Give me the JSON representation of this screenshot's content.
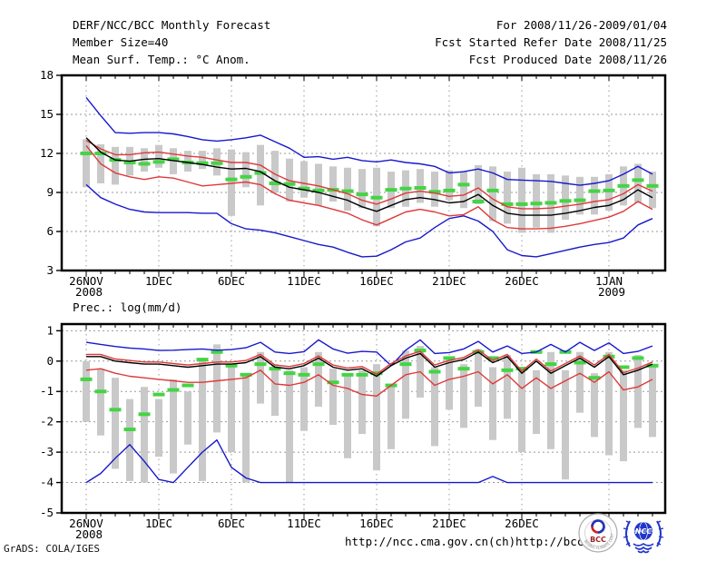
{
  "header": {
    "left1": "DERF/NCC/BCC Monthly Forecast",
    "left2": "Member Size=40",
    "left3": "Mean Surf. Temp.: °C Anom.",
    "right1": "For 2008/11/26-2009/01/04",
    "right2": "Fcst Started Refer Date 2008/11/25",
    "right3": "Fcst Produced Date 2008/11/26"
  },
  "panels": {
    "precip_title": "Prec.: log(mm/d)"
  },
  "footer": {
    "ncc_url": "http://ncc.cma.gov.cn(ch)",
    "bcc_url": "http://bcc.c",
    "credit": "GrADS: COLA/IGES",
    "bcc_logo_text": "BCC",
    "bcc_ring_text": "BEIJING CLIMATE CENTER",
    "ncc_logo_text": "NCC"
  },
  "colors": {
    "envelope": "#1818cc",
    "quartile": "#e03838",
    "mean": "#000000",
    "obs": "#44d444",
    "spread_bar": "#c9c9c9",
    "grid": "#999999",
    "frame": "#000000"
  },
  "chart_data": [
    {
      "type": "line",
      "title": "Mean Surf. Temp.: °C Anom.",
      "xlabel": "",
      "ylabel": "",
      "ylim": [
        3,
        18
      ],
      "grid": true,
      "n_days": 40,
      "x_start_date": "26NOV2008",
      "x_end_date": "4JAN2009",
      "y_ticks": [
        {
          "v": 18,
          "label": "18"
        },
        {
          "v": 15,
          "label": "15"
        },
        {
          "v": 12,
          "label": "12"
        },
        {
          "v": 9,
          "label": "9"
        },
        {
          "v": 6,
          "label": "6"
        },
        {
          "v": 3,
          "label": "3"
        }
      ],
      "grid_y": [
        15,
        12,
        9,
        6
      ],
      "x_grid_days": [
        0,
        5,
        10,
        15,
        20,
        25,
        30,
        36
      ],
      "x_ticks": [
        {
          "day": 0,
          "label": "26NOV",
          "sublabel": "2008"
        },
        {
          "day": 5,
          "label": "1DEC"
        },
        {
          "day": 10,
          "label": "6DEC"
        },
        {
          "day": 15,
          "label": "11DEC"
        },
        {
          "day": 20,
          "label": "16DEC"
        },
        {
          "day": 25,
          "label": "21DEC"
        },
        {
          "day": 30,
          "label": "26DEC"
        },
        {
          "day": 36,
          "label": "1JAN",
          "sublabel": "2009"
        }
      ],
      "series": [
        {
          "name": "ensemble-max",
          "role": "envelope",
          "values": [
            16.3,
            14.9,
            13.6,
            13.55,
            13.6,
            13.6,
            13.5,
            13.3,
            13.05,
            12.95,
            13.05,
            13.2,
            13.4,
            12.9,
            12.4,
            11.7,
            11.75,
            11.55,
            11.7,
            11.45,
            11.35,
            11.5,
            11.3,
            11.2,
            11.0,
            10.5,
            10.6,
            10.8,
            10.5,
            10.0,
            9.95,
            9.9,
            9.85,
            9.7,
            9.55,
            9.7,
            9.9,
            10.4,
            11.0,
            10.4
          ]
        },
        {
          "name": "ensemble-min",
          "role": "envelope",
          "values": [
            9.6,
            8.6,
            8.1,
            7.7,
            7.5,
            7.45,
            7.45,
            7.45,
            7.4,
            7.4,
            6.6,
            6.2,
            6.1,
            5.9,
            5.6,
            5.3,
            5.0,
            4.8,
            4.4,
            4.05,
            4.1,
            4.6,
            5.2,
            5.5,
            6.3,
            7.0,
            7.2,
            6.8,
            6.0,
            4.6,
            4.15,
            4.05,
            4.3,
            4.55,
            4.8,
            5.0,
            5.15,
            5.5,
            6.5,
            7.0
          ]
        },
        {
          "name": "upper-quartile",
          "role": "quartile",
          "values": [
            13.0,
            12.35,
            11.9,
            11.9,
            12.05,
            12.1,
            11.95,
            11.8,
            11.7,
            11.5,
            11.3,
            11.3,
            11.1,
            10.4,
            9.9,
            9.7,
            9.5,
            9.2,
            8.9,
            8.4,
            8.1,
            8.5,
            8.95,
            9.1,
            8.95,
            8.7,
            8.8,
            9.35,
            8.5,
            7.9,
            7.75,
            7.75,
            7.8,
            7.95,
            8.1,
            8.3,
            8.45,
            8.9,
            9.6,
            9.1
          ]
        },
        {
          "name": "lower-quartile",
          "role": "quartile",
          "values": [
            12.6,
            11.2,
            10.5,
            10.2,
            10.0,
            10.2,
            10.1,
            9.8,
            9.5,
            9.6,
            9.7,
            9.8,
            9.6,
            8.9,
            8.4,
            8.2,
            8.0,
            7.7,
            7.4,
            6.9,
            6.5,
            7.0,
            7.5,
            7.7,
            7.5,
            7.2,
            7.3,
            7.9,
            6.9,
            6.3,
            6.2,
            6.2,
            6.25,
            6.4,
            6.6,
            6.85,
            7.1,
            7.55,
            8.3,
            7.7
          ]
        },
        {
          "name": "ensemble-mean",
          "role": "mean",
          "values": [
            13.2,
            12.1,
            11.5,
            11.4,
            11.55,
            11.6,
            11.45,
            11.3,
            11.15,
            10.95,
            10.8,
            10.85,
            10.6,
            9.9,
            9.4,
            9.2,
            9.0,
            8.7,
            8.4,
            7.9,
            7.55,
            8.0,
            8.45,
            8.6,
            8.45,
            8.2,
            8.3,
            8.85,
            8.0,
            7.4,
            7.25,
            7.25,
            7.25,
            7.4,
            7.6,
            7.85,
            8.0,
            8.45,
            9.2,
            8.6
          ]
        }
      ],
      "obs_dashes": [
        12.0,
        12.0,
        11.5,
        11.3,
        11.2,
        11.35,
        11.55,
        11.3,
        11.25,
        11.25,
        10.0,
        10.2,
        10.5,
        9.7,
        9.65,
        9.3,
        9.15,
        9.2,
        9.1,
        8.85,
        8.6,
        9.2,
        9.3,
        9.35,
        9.05,
        9.15,
        9.6,
        8.3,
        9.15,
        8.1,
        8.1,
        8.15,
        8.2,
        8.35,
        8.4,
        9.1,
        9.15,
        9.5,
        9.95,
        9.5
      ],
      "spread_bars": [
        [
          9.4,
          13.1
        ],
        [
          9.7,
          12.7
        ],
        [
          9.6,
          12.5
        ],
        [
          10.3,
          12.5
        ],
        [
          10.6,
          12.4
        ],
        [
          10.9,
          12.65
        ],
        [
          10.4,
          12.4
        ],
        [
          10.6,
          12.2
        ],
        [
          10.8,
          12.2
        ],
        [
          10.3,
          12.4
        ],
        [
          7.2,
          12.3
        ],
        [
          9.4,
          12.1
        ],
        [
          8.0,
          12.65
        ],
        [
          9.0,
          12.2
        ],
        [
          8.3,
          11.6
        ],
        [
          8.6,
          11.4
        ],
        [
          8.0,
          11.2
        ],
        [
          8.3,
          11.0
        ],
        [
          7.6,
          10.9
        ],
        [
          7.8,
          10.8
        ],
        [
          6.4,
          10.9
        ],
        [
          7.8,
          10.6
        ],
        [
          7.9,
          10.7
        ],
        [
          8.2,
          10.8
        ],
        [
          7.9,
          10.6
        ],
        [
          8.4,
          10.7
        ],
        [
          7.8,
          10.6
        ],
        [
          8.1,
          11.1
        ],
        [
          6.8,
          11.0
        ],
        [
          6.6,
          10.6
        ],
        [
          5.9,
          10.9
        ],
        [
          6.3,
          10.4
        ],
        [
          5.9,
          10.4
        ],
        [
          6.9,
          10.3
        ],
        [
          7.3,
          10.2
        ],
        [
          7.3,
          10.2
        ],
        [
          7.6,
          10.4
        ],
        [
          8.0,
          11.0
        ],
        [
          8.2,
          11.2
        ],
        [
          7.8,
          10.6
        ]
      ]
    },
    {
      "type": "line",
      "title": "Prec.: log(mm/d)",
      "xlabel": "",
      "ylabel": "",
      "ylim": [
        -5,
        1.22
      ],
      "grid": true,
      "n_days": 40,
      "x_start_date": "26NOV2008",
      "x_end_date": "4JAN2009",
      "y_ticks": [
        {
          "v": 1,
          "label": "1"
        },
        {
          "v": 0,
          "label": "0"
        },
        {
          "v": -1,
          "label": "-1"
        },
        {
          "v": -2,
          "label": "-2"
        },
        {
          "v": -3,
          "label": "-3"
        },
        {
          "v": -4,
          "label": "-4"
        },
        {
          "v": -5,
          "label": "-5"
        }
      ],
      "grid_y": [
        1,
        0,
        -1,
        -2,
        -3,
        -4
      ],
      "x_grid_days": [
        0,
        5,
        10,
        15,
        20,
        25,
        30,
        36
      ],
      "x_ticks": [
        {
          "day": 0,
          "label": "26NOV",
          "sublabel": "2008"
        },
        {
          "day": 5,
          "label": "1DEC"
        },
        {
          "day": 10,
          "label": "6DEC"
        },
        {
          "day": 15,
          "label": "11DEC"
        },
        {
          "day": 20,
          "label": "16DEC"
        },
        {
          "day": 25,
          "label": "21DEC"
        },
        {
          "day": 30,
          "label": "26DEC"
        }
      ],
      "series": [
        {
          "name": "ensemble-max",
          "role": "envelope",
          "values": [
            0.62,
            0.55,
            0.48,
            0.43,
            0.4,
            0.35,
            0.36,
            0.38,
            0.4,
            0.36,
            0.38,
            0.44,
            0.62,
            0.3,
            0.25,
            0.31,
            0.7,
            0.4,
            0.26,
            0.32,
            0.3,
            -0.15,
            0.36,
            0.7,
            0.25,
            0.28,
            0.4,
            0.65,
            0.3,
            0.5,
            0.25,
            0.3,
            0.55,
            0.3,
            0.62,
            0.35,
            0.6,
            0.25,
            0.32,
            0.5
          ]
        },
        {
          "name": "ensemble-min",
          "role": "envelope",
          "values": [
            -4.0,
            -3.7,
            -3.2,
            -2.75,
            -3.3,
            -3.9,
            -4.0,
            -3.5,
            -3.0,
            -2.6,
            -3.5,
            -3.85,
            -4.0,
            -4.0,
            -4.0,
            -4.0,
            -4.0,
            -4.0,
            -4.0,
            -4.0,
            -4.0,
            -4.0,
            -4.0,
            -4.0,
            -4.0,
            -4.0,
            -4.0,
            -4.0,
            -3.8,
            -4.0,
            -4.0,
            -4.0,
            -4.0,
            -4.0,
            -4.0,
            -4.0,
            -4.0,
            -4.0,
            -4.0,
            -4.0
          ]
        },
        {
          "name": "upper-quartile",
          "role": "quartile",
          "values": [
            0.22,
            0.22,
            0.07,
            0.02,
            -0.03,
            -0.03,
            -0.08,
            -0.13,
            -0.08,
            -0.03,
            -0.03,
            0.02,
            0.22,
            -0.13,
            -0.18,
            -0.08,
            0.17,
            -0.13,
            -0.23,
            -0.18,
            -0.43,
            -0.08,
            0.17,
            0.32,
            -0.13,
            0.02,
            0.12,
            0.37,
            0.02,
            0.22,
            -0.33,
            0.07,
            -0.33,
            -0.08,
            0.17,
            -0.13,
            0.22,
            -0.38,
            -0.23,
            -0.03
          ]
        },
        {
          "name": "lower-quartile",
          "role": "quartile",
          "values": [
            -0.3,
            -0.25,
            -0.4,
            -0.5,
            -0.55,
            -0.6,
            -0.65,
            -0.7,
            -0.7,
            -0.65,
            -0.6,
            -0.55,
            -0.3,
            -0.75,
            -0.8,
            -0.7,
            -0.45,
            -0.8,
            -0.9,
            -1.1,
            -1.15,
            -0.8,
            -0.45,
            -0.35,
            -0.8,
            -0.6,
            -0.5,
            -0.35,
            -0.75,
            -0.45,
            -0.9,
            -0.55,
            -0.9,
            -0.65,
            -0.4,
            -0.7,
            -0.35,
            -0.95,
            -0.85,
            -0.6
          ]
        },
        {
          "name": "ensemble-mean",
          "role": "mean",
          "values": [
            0.15,
            0.15,
            0.0,
            -0.05,
            -0.1,
            -0.1,
            -0.15,
            -0.2,
            -0.15,
            -0.1,
            -0.1,
            -0.05,
            0.15,
            -0.2,
            -0.25,
            -0.15,
            0.1,
            -0.2,
            -0.3,
            -0.25,
            -0.5,
            -0.15,
            0.1,
            0.25,
            -0.2,
            -0.05,
            0.05,
            0.3,
            -0.05,
            0.15,
            -0.4,
            0.0,
            -0.4,
            -0.15,
            0.1,
            -0.2,
            0.15,
            -0.45,
            -0.3,
            -0.1
          ]
        }
      ],
      "obs_dashes": [
        -0.6,
        -1.0,
        -1.6,
        -2.25,
        -1.75,
        -1.1,
        -0.95,
        -0.8,
        0.05,
        0.3,
        -0.15,
        -0.45,
        -0.1,
        -0.25,
        -0.4,
        -0.45,
        -0.1,
        -0.7,
        -0.45,
        -0.45,
        -0.4,
        -0.8,
        -0.1,
        0.35,
        -0.35,
        0.1,
        -0.25,
        0.3,
        0.1,
        -0.3,
        -0.25,
        0.3,
        -0.1,
        0.3,
        -0.05,
        -0.55,
        0.15,
        -0.2,
        0.1,
        -0.15
      ],
      "spread_bars": [
        [
          0.0,
          -2.0
        ],
        [
          -0.25,
          -2.45
        ],
        [
          -0.55,
          -3.55
        ],
        [
          -1.25,
          -3.95
        ],
        [
          -0.85,
          -4.0
        ],
        [
          -1.25,
          -3.15
        ],
        [
          -0.6,
          -3.7
        ],
        [
          -1.0,
          -2.75
        ],
        [
          0.0,
          -3.95
        ],
        [
          0.55,
          -2.35
        ],
        [
          -0.1,
          -3.0
        ],
        [
          -0.4,
          -4.0
        ],
        [
          0.3,
          -1.4
        ],
        [
          -0.1,
          -1.8
        ],
        [
          -0.3,
          -4.0
        ],
        [
          -0.2,
          -2.3
        ],
        [
          0.3,
          -1.5
        ],
        [
          -0.25,
          -2.1
        ],
        [
          -0.4,
          -3.2
        ],
        [
          -0.3,
          -2.4
        ],
        [
          -0.1,
          -3.6
        ],
        [
          -0.8,
          -2.9
        ],
        [
          0.35,
          -1.9
        ],
        [
          0.5,
          -1.2
        ],
        [
          -0.2,
          -2.8
        ],
        [
          0.1,
          -1.6
        ],
        [
          -0.1,
          -2.2
        ],
        [
          0.4,
          -1.5
        ],
        [
          -0.2,
          -2.6
        ],
        [
          0.2,
          -1.9
        ],
        [
          -0.2,
          -3.0
        ],
        [
          -0.3,
          -2.4
        ],
        [
          0.3,
          -2.9
        ],
        [
          -0.3,
          -3.9
        ],
        [
          0.3,
          -1.7
        ],
        [
          -0.4,
          -2.5
        ],
        [
          0.3,
          -3.1
        ],
        [
          -0.3,
          -3.3
        ],
        [
          0.2,
          -2.2
        ],
        [
          -0.1,
          -2.5
        ]
      ]
    }
  ]
}
